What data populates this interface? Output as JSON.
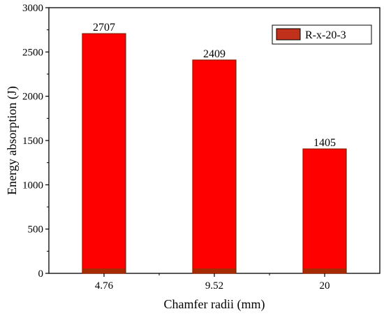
{
  "chart_data": {
    "type": "bar",
    "title": "",
    "xlabel": "Chamfer radii (mm)",
    "ylabel": "Energy absorption (J)",
    "categories": [
      "4.76",
      "9.52",
      "20"
    ],
    "series": [
      {
        "name": "R-x-20-3",
        "values": [
          2707,
          2409,
          1405
        ]
      }
    ],
    "data_labels": [
      "2707",
      "2409",
      "1405"
    ],
    "ylim": [
      0,
      3000
    ],
    "yticks": [
      0,
      500,
      1000,
      1500,
      2000,
      2500,
      3000
    ],
    "grid": false,
    "legend_position": "top-right",
    "colors": {
      "bar_fill": "#ff0000",
      "bar_edge": "#8b1a00",
      "bar_base": "#a52a00",
      "legend_swatch": "#c0301a"
    }
  }
}
